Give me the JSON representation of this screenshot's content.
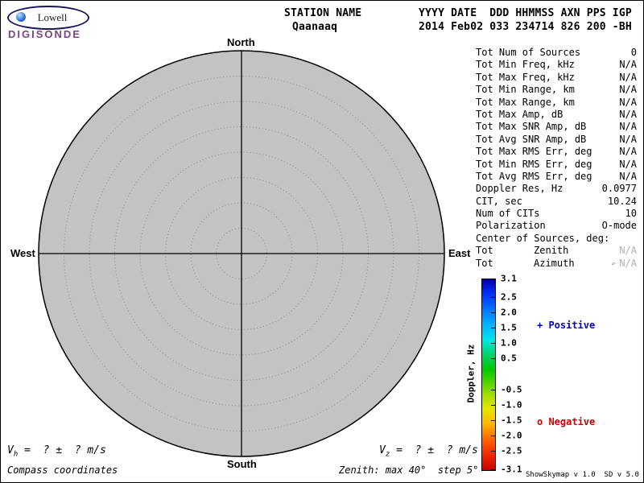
{
  "brand": {
    "name": "Lowell",
    "product": "DIGISONDE"
  },
  "header": {
    "station_label": "STATION NAME",
    "station_value": "Qaanaaq",
    "columns_label": "YYYY DATE  DDD HHMMSS AXN PPS IGP",
    "columns_value": "2014 Feb02 033 234714 826 200 -BH"
  },
  "compass": {
    "north": "North",
    "south": "South",
    "west": "West",
    "east": "East"
  },
  "skymap": {
    "max_zenith_deg": 40,
    "step_deg": 5,
    "fill_color": "#c3c3c3"
  },
  "stats": {
    "rows": [
      {
        "label": "Tot Num of Sources",
        "value": "0",
        "muted": true
      },
      {
        "label": "Tot Min Freq, kHz",
        "value": "N/A",
        "muted": true
      },
      {
        "label": "Tot Max Freq, kHz",
        "value": "N/A",
        "muted": true
      },
      {
        "label": "Tot Min Range, km",
        "value": "N/A",
        "muted": true
      },
      {
        "label": "Tot Max Range, km",
        "value": "N/A",
        "muted": true
      },
      {
        "label": "Tot Max Amp, dB",
        "value": "N/A",
        "muted": true
      },
      {
        "label": "Tot Max SNR Amp, dB",
        "value": "N/A",
        "muted": true
      },
      {
        "label": "Tot Avg SNR Amp, dB",
        "value": "N/A",
        "muted": true
      },
      {
        "label": "Tot Max RMS Err, deg",
        "value": "N/A",
        "muted": true
      },
      {
        "label": "Tot Min RMS Err, deg",
        "value": "N/A",
        "muted": true
      },
      {
        "label": "Tot Avg RMS Err, deg",
        "value": "N/A",
        "muted": true
      },
      {
        "label": "Doppler Res, Hz",
        "value": "0.0977",
        "muted": false
      },
      {
        "label": "CIT, sec",
        "value": "10.24",
        "muted": false
      },
      {
        "label": "Num of CITs",
        "value": "10",
        "muted": false
      },
      {
        "label": "Polarization",
        "value": "O-mode",
        "muted": false
      }
    ],
    "center_header": "Center of Sources, deg:",
    "center_rows": [
      {
        "label": "Tot",
        "sub": "Zenith",
        "value": "N/A",
        "icon": ""
      },
      {
        "label": "Tot",
        "sub": "Azimuth",
        "value": "N/A",
        "icon": "↶"
      }
    ]
  },
  "colorbar": {
    "title": "Doppler, Hz",
    "max": 3.1,
    "min": -3.1,
    "ticks": [
      "3.1",
      "2.5",
      "2.0",
      "1.5",
      "1.0",
      "0.5",
      "-0.5",
      "-1.0",
      "-1.5",
      "-2.0",
      "-2.5",
      "-3.1"
    ],
    "positive_label": "+ Positive",
    "negative_label": "o Negative",
    "positive_color": "#0000cc",
    "negative_color": "#cc0000"
  },
  "footer": {
    "vh_symbol": "V",
    "vh_sub": "h",
    "vh_text": " =  ? ±  ? m/s",
    "vz_symbol": "V",
    "vz_sub": "z",
    "vz_text": " =  ? ±  ? m/s",
    "coords_note": "Compass coordinates",
    "zenith_note": "Zenith: max 40°  step 5°",
    "version": "ShowSkymap v 1.0  SD v 5.0"
  }
}
